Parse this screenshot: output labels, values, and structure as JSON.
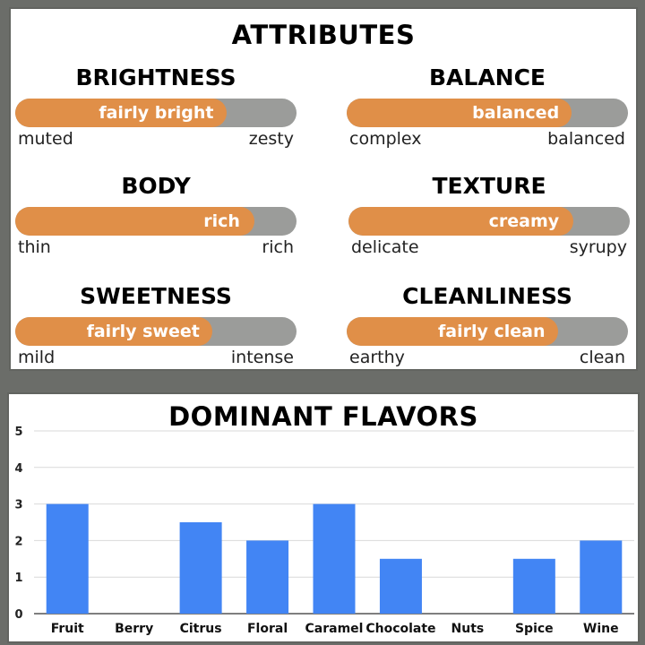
{
  "attributes": {
    "title": "ATTRIBUTES",
    "items": [
      {
        "name": "BRIGHTNESS",
        "value_label": "fairly bright",
        "level": 0.75,
        "low": "muted",
        "high": "zesty"
      },
      {
        "name": "BALANCE",
        "value_label": "balanced",
        "level": 0.8,
        "low": "complex",
        "high": "balanced"
      },
      {
        "name": "BODY",
        "value_label": "rich",
        "level": 0.85,
        "low": "thin",
        "high": "rich"
      },
      {
        "name": "TEXTURE",
        "value_label": "creamy",
        "level": 0.8,
        "low": "delicate",
        "high": "syrupy"
      },
      {
        "name": "SWEETNESS",
        "value_label": "fairly sweet",
        "level": 0.7,
        "low": "mild",
        "high": "intense"
      },
      {
        "name": "CLEANLINESS",
        "value_label": "fairly clean",
        "level": 0.75,
        "low": "earthy",
        "high": "clean"
      }
    ],
    "colors": {
      "fill": "#e08f48",
      "track": "#9b9c9a"
    }
  },
  "chart_data": {
    "type": "bar",
    "title": "DOMINANT FLAVORS",
    "categories": [
      "Fruit",
      "Berry",
      "Citrus",
      "Floral",
      "Caramel",
      "Chocolate",
      "Nuts",
      "Spice",
      "Wine"
    ],
    "values": [
      3,
      0,
      2.5,
      2,
      3,
      1.5,
      0,
      1.5,
      2
    ],
    "yticks": [
      "0",
      "1",
      "2",
      "3",
      "4",
      "5"
    ],
    "ylim": [
      0,
      5
    ],
    "grid": true,
    "bar_color": "#4285f4",
    "xlabel": "",
    "ylabel": ""
  }
}
